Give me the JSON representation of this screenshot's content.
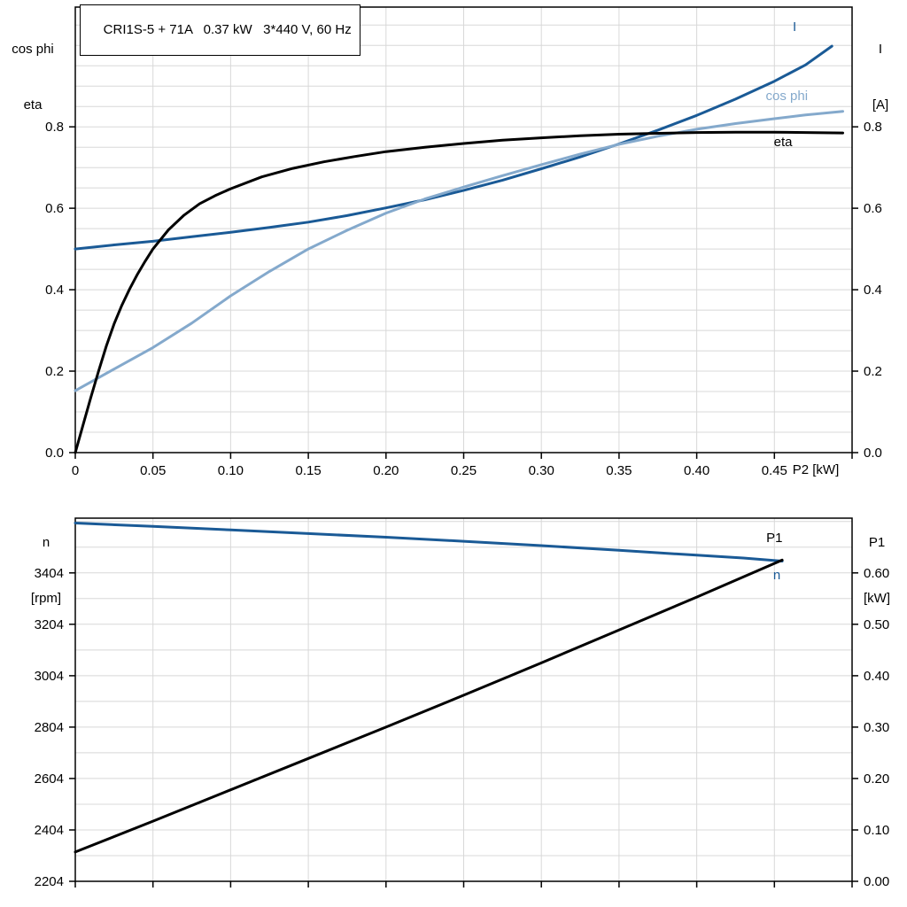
{
  "colors": {
    "dark_blue": "#1a5a96",
    "light_blue": "#84a9cc",
    "black": "#000000",
    "grid": "#d8d8d8",
    "frame": "#000000",
    "text": "#000000",
    "background": "#ffffff"
  },
  "chart_data": [
    {
      "type": "line",
      "title": "CRI1S-5 + 71A   0.37 kW   3*440 V, 60 Hz",
      "xlabel": "P2 [kW]",
      "left_axis_label": [
        "cos phi",
        "eta"
      ],
      "right_axis_label": [
        "I",
        "[A]"
      ],
      "xlim": [
        0,
        0.5
      ],
      "left_ylim": [
        0,
        1.094
      ],
      "right_ylim": [
        0,
        1.094
      ],
      "grid": {
        "x_step": 0.05,
        "y_axis": "left",
        "y_step": 0.05
      },
      "legend_position": "curve-end-labels",
      "x_ticks": [
        {
          "v": 0,
          "label": "0"
        },
        {
          "v": 0.05,
          "label": "0.05"
        },
        {
          "v": 0.1,
          "label": "0.10"
        },
        {
          "v": 0.15,
          "label": "0.15"
        },
        {
          "v": 0.2,
          "label": "0.20"
        },
        {
          "v": 0.25,
          "label": "0.25"
        },
        {
          "v": 0.3,
          "label": "0.30"
        },
        {
          "v": 0.35,
          "label": "0.35"
        },
        {
          "v": 0.4,
          "label": "0.40"
        },
        {
          "v": 0.45,
          "label": "0.45"
        },
        {
          "v": 0.5,
          "label": ""
        }
      ],
      "left_y_ticks": [
        {
          "v": 0.0,
          "label": "0.0"
        },
        {
          "v": 0.2,
          "label": "0.2"
        },
        {
          "v": 0.4,
          "label": "0.4"
        },
        {
          "v": 0.6,
          "label": "0.6"
        },
        {
          "v": 0.8,
          "label": "0.8"
        }
      ],
      "right_y_ticks": [
        {
          "v": 0.0,
          "label": "0.0"
        },
        {
          "v": 0.2,
          "label": "0.2"
        },
        {
          "v": 0.4,
          "label": "0.4"
        },
        {
          "v": 0.6,
          "label": "0.6"
        },
        {
          "v": 0.8,
          "label": "0.8"
        }
      ],
      "series": [
        {
          "name": "I",
          "axis": "left",
          "color": "dark_blue",
          "width": 3,
          "label": {
            "x": 0.463,
            "y": 1.046
          },
          "points": [
            [
              0,
              0.5
            ],
            [
              0.025,
              0.51
            ],
            [
              0.05,
              0.519
            ],
            [
              0.075,
              0.53
            ],
            [
              0.1,
              0.541
            ],
            [
              0.125,
              0.553
            ],
            [
              0.15,
              0.566
            ],
            [
              0.175,
              0.582
            ],
            [
              0.2,
              0.601
            ],
            [
              0.225,
              0.621
            ],
            [
              0.25,
              0.644
            ],
            [
              0.275,
              0.669
            ],
            [
              0.3,
              0.697
            ],
            [
              0.325,
              0.726
            ],
            [
              0.35,
              0.758
            ],
            [
              0.375,
              0.792
            ],
            [
              0.4,
              0.828
            ],
            [
              0.425,
              0.868
            ],
            [
              0.45,
              0.912
            ],
            [
              0.47,
              0.952
            ],
            [
              0.487,
              0.998
            ]
          ]
        },
        {
          "name": "cos phi",
          "axis": "left",
          "color": "light_blue",
          "width": 3,
          "label": {
            "x": 0.458,
            "y": 0.876
          },
          "points": [
            [
              0,
              0.152
            ],
            [
              0.025,
              0.205
            ],
            [
              0.05,
              0.258
            ],
            [
              0.075,
              0.318
            ],
            [
              0.1,
              0.385
            ],
            [
              0.125,
              0.445
            ],
            [
              0.15,
              0.5
            ],
            [
              0.175,
              0.546
            ],
            [
              0.2,
              0.588
            ],
            [
              0.225,
              0.623
            ],
            [
              0.25,
              0.652
            ],
            [
              0.275,
              0.68
            ],
            [
              0.3,
              0.707
            ],
            [
              0.325,
              0.733
            ],
            [
              0.35,
              0.757
            ],
            [
              0.375,
              0.777
            ],
            [
              0.4,
              0.794
            ],
            [
              0.425,
              0.808
            ],
            [
              0.45,
              0.82
            ],
            [
              0.47,
              0.829
            ],
            [
              0.494,
              0.838
            ]
          ]
        },
        {
          "name": "eta",
          "axis": "left",
          "color": "black",
          "width": 3,
          "label": {
            "x": 0.4556,
            "y": 0.763
          },
          "points": [
            [
              0,
              0.0
            ],
            [
              0.005,
              0.068
            ],
            [
              0.01,
              0.135
            ],
            [
              0.015,
              0.2
            ],
            [
              0.02,
              0.262
            ],
            [
              0.025,
              0.316
            ],
            [
              0.03,
              0.362
            ],
            [
              0.035,
              0.402
            ],
            [
              0.04,
              0.438
            ],
            [
              0.045,
              0.47
            ],
            [
              0.05,
              0.5
            ],
            [
              0.06,
              0.547
            ],
            [
              0.07,
              0.583
            ],
            [
              0.08,
              0.611
            ],
            [
              0.09,
              0.631
            ],
            [
              0.1,
              0.648
            ],
            [
              0.12,
              0.677
            ],
            [
              0.14,
              0.698
            ],
            [
              0.16,
              0.714
            ],
            [
              0.18,
              0.727
            ],
            [
              0.2,
              0.739
            ],
            [
              0.225,
              0.75
            ],
            [
              0.25,
              0.759
            ],
            [
              0.275,
              0.767
            ],
            [
              0.3,
              0.773
            ],
            [
              0.325,
              0.778
            ],
            [
              0.35,
              0.782
            ],
            [
              0.375,
              0.784
            ],
            [
              0.4,
              0.786
            ],
            [
              0.425,
              0.787
            ],
            [
              0.45,
              0.787
            ],
            [
              0.47,
              0.786
            ],
            [
              0.494,
              0.785
            ]
          ]
        }
      ]
    },
    {
      "type": "line",
      "title": "",
      "xlabel": "",
      "left_axis_label": [
        "n",
        "[rpm]"
      ],
      "right_axis_label": [
        "P1",
        "[kW]"
      ],
      "xlim": [
        0,
        0.5
      ],
      "left_ylim": [
        2204,
        3617
      ],
      "right_ylim": [
        0,
        0.7065
      ],
      "grid": {
        "x_step": 0.05,
        "y_axis": "right",
        "y_step": 0.05
      },
      "legend_position": "curve-end-labels",
      "x_ticks": [
        {
          "v": 0,
          "label": ""
        },
        {
          "v": 0.05,
          "label": ""
        },
        {
          "v": 0.1,
          "label": ""
        },
        {
          "v": 0.15,
          "label": ""
        },
        {
          "v": 0.2,
          "label": ""
        },
        {
          "v": 0.25,
          "label": ""
        },
        {
          "v": 0.3,
          "label": ""
        },
        {
          "v": 0.35,
          "label": ""
        },
        {
          "v": 0.4,
          "label": ""
        },
        {
          "v": 0.45,
          "label": ""
        },
        {
          "v": 0.5,
          "label": ""
        }
      ],
      "left_y_ticks": [
        {
          "v": 2204,
          "label": "2204"
        },
        {
          "v": 2404,
          "label": "2404"
        },
        {
          "v": 2604,
          "label": "2604"
        },
        {
          "v": 2804,
          "label": "2804"
        },
        {
          "v": 3004,
          "label": "3004"
        },
        {
          "v": 3204,
          "label": "3204"
        },
        {
          "v": 3404,
          "label": "3404"
        }
      ],
      "right_y_ticks": [
        {
          "v": 0.0,
          "label": "0.00"
        },
        {
          "v": 0.1,
          "label": "0.10"
        },
        {
          "v": 0.2,
          "label": "0.20"
        },
        {
          "v": 0.3,
          "label": "0.30"
        },
        {
          "v": 0.4,
          "label": "0.40"
        },
        {
          "v": 0.5,
          "label": "0.50"
        },
        {
          "v": 0.6,
          "label": "0.60"
        }
      ],
      "series": [
        {
          "name": "n",
          "axis": "left",
          "color": "dark_blue",
          "width": 3,
          "label": {
            "x": 0.4516,
            "y": 3396
          },
          "points": [
            [
              0,
              3598
            ],
            [
              0.05,
              3585
            ],
            [
              0.1,
              3571
            ],
            [
              0.15,
              3557
            ],
            [
              0.2,
              3543
            ],
            [
              0.25,
              3527
            ],
            [
              0.3,
              3510
            ],
            [
              0.35,
              3492
            ],
            [
              0.4,
              3473
            ],
            [
              0.43,
              3462
            ],
            [
              0.455,
              3450
            ]
          ]
        },
        {
          "name": "P1",
          "axis": "right",
          "color": "black",
          "width": 3,
          "label": {
            "x": 0.45,
            "y": 0.6686
          },
          "points": [
            [
              0,
              0.057
            ],
            [
              0.05,
              0.117
            ],
            [
              0.1,
              0.178
            ],
            [
              0.15,
              0.239
            ],
            [
              0.2,
              0.3
            ],
            [
              0.25,
              0.362
            ],
            [
              0.3,
              0.425
            ],
            [
              0.35,
              0.489
            ],
            [
              0.4,
              0.553
            ],
            [
              0.455,
              0.625
            ]
          ]
        }
      ]
    }
  ]
}
